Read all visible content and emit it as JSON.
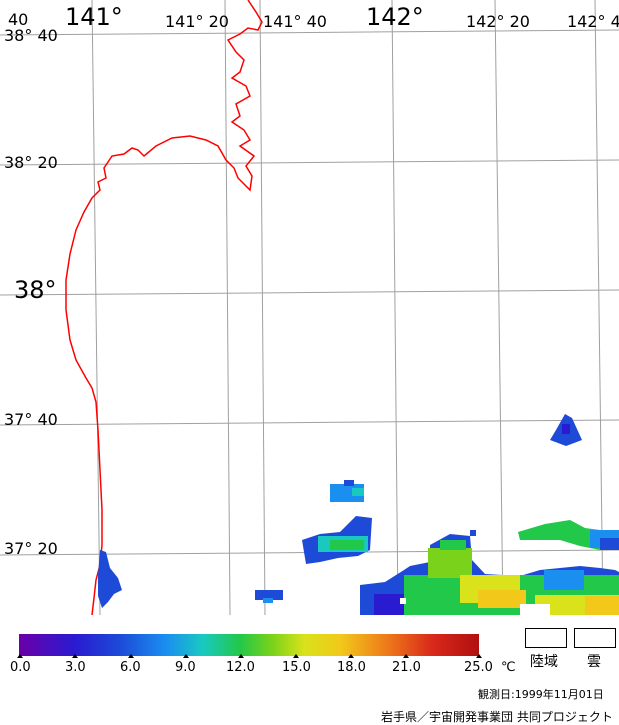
{
  "map": {
    "lon_labels": [
      {
        "text": "40",
        "kind": "minor"
      },
      {
        "text": "141°",
        "kind": "major"
      },
      {
        "text": "141° 20",
        "kind": "minor"
      },
      {
        "text": "141° 40",
        "kind": "minor"
      },
      {
        "text": "142°",
        "kind": "major"
      },
      {
        "text": "142° 20",
        "kind": "minor"
      },
      {
        "text": "142° 4",
        "kind": "minor"
      }
    ],
    "lat_labels": [
      {
        "text": "38° 40",
        "kind": "minor"
      },
      {
        "text": "38° 20",
        "kind": "minor"
      },
      {
        "text": "38°",
        "kind": "major"
      },
      {
        "text": "37° 40",
        "kind": "minor"
      },
      {
        "text": "37° 20",
        "kind": "minor"
      }
    ],
    "colors": {
      "grid": "#a0a0a0",
      "coastline": "#ff0000",
      "background": "#ffffff"
    }
  },
  "colorbar": {
    "ticks": [
      "0.0",
      "3.0",
      "6.0",
      "9.0",
      "12.0",
      "15.0",
      "18.0",
      "21.0",
      "25.0"
    ],
    "unit": "℃"
  },
  "legend": {
    "land": "陸域",
    "cloud": "雲"
  },
  "observation_date": "観測日:1999年11月01日",
  "credit": "岩手県／宇宙開発事業団 共同プロジェクト"
}
